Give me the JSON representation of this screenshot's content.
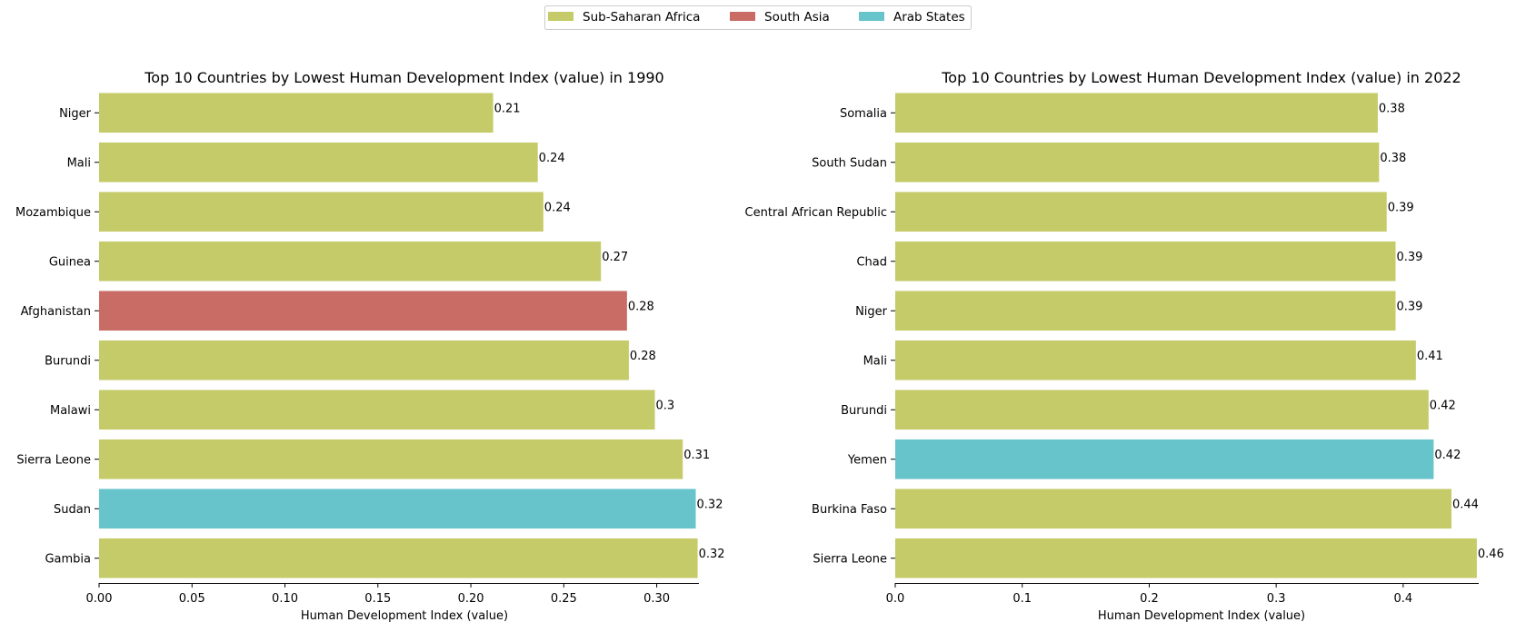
{
  "legend": {
    "items": [
      {
        "name": "Sub-Saharan Africa",
        "color": "#c4cb68"
      },
      {
        "name": "South Asia",
        "color": "#c96c66"
      },
      {
        "name": "Arab States",
        "color": "#67c4cb"
      }
    ],
    "placement": "top-center"
  },
  "chart_data": [
    {
      "type": "bar",
      "orientation": "horizontal",
      "title": "Top 10 Countries by Lowest Human Development Index (value) in 1990",
      "xlabel": "Human Development Index (value)",
      "ylabel": "",
      "xlim": [
        0,
        0.3227
      ],
      "xticks": [
        "0.00",
        "0.05",
        "0.10",
        "0.15",
        "0.20",
        "0.25",
        "0.30"
      ],
      "xtick_values": [
        0,
        0.05,
        0.1,
        0.15,
        0.2,
        0.25,
        0.3
      ],
      "grid": false,
      "categories": [
        "Niger",
        "Mali",
        "Mozambique",
        "Guinea",
        "Afghanistan",
        "Burundi",
        "Malawi",
        "Sierra Leone",
        "Sudan",
        "Gambia"
      ],
      "values": [
        0.212,
        0.236,
        0.239,
        0.27,
        0.284,
        0.285,
        0.299,
        0.314,
        0.321,
        0.322
      ],
      "data_labels": [
        "0.21",
        "0.24",
        "0.24",
        "0.27",
        "0.28",
        "0.28",
        "0.3",
        "0.31",
        "0.32",
        "0.32"
      ],
      "regions": [
        "Sub-Saharan Africa",
        "Sub-Saharan Africa",
        "Sub-Saharan Africa",
        "Sub-Saharan Africa",
        "South Asia",
        "Sub-Saharan Africa",
        "Sub-Saharan Africa",
        "Sub-Saharan Africa",
        "Arab States",
        "Sub-Saharan Africa"
      ]
    },
    {
      "type": "bar",
      "orientation": "horizontal",
      "title": "Top 10 Countries by Lowest Human Development Index (value) in 2022",
      "xlabel": "Human Development Index (value)",
      "ylabel": "",
      "xlim": [
        0,
        0.4595
      ],
      "xticks": [
        "0.0",
        "0.1",
        "0.2",
        "0.3",
        "0.4"
      ],
      "xtick_values": [
        0,
        0.1,
        0.2,
        0.3,
        0.4
      ],
      "grid": false,
      "categories": [
        "Somalia",
        "South Sudan",
        "Central African Republic",
        "Chad",
        "Niger",
        "Mali",
        "Burundi",
        "Yemen",
        "Burkina Faso",
        "Sierra Leone"
      ],
      "values": [
        0.38,
        0.381,
        0.387,
        0.394,
        0.394,
        0.41,
        0.42,
        0.424,
        0.438,
        0.458
      ],
      "data_labels": [
        "0.38",
        "0.38",
        "0.39",
        "0.39",
        "0.39",
        "0.41",
        "0.42",
        "0.42",
        "0.44",
        "0.46"
      ],
      "regions": [
        "Sub-Saharan Africa",
        "Sub-Saharan Africa",
        "Sub-Saharan Africa",
        "Sub-Saharan Africa",
        "Sub-Saharan Africa",
        "Sub-Saharan Africa",
        "Sub-Saharan Africa",
        "Arab States",
        "Sub-Saharan Africa",
        "Sub-Saharan Africa"
      ]
    }
  ]
}
